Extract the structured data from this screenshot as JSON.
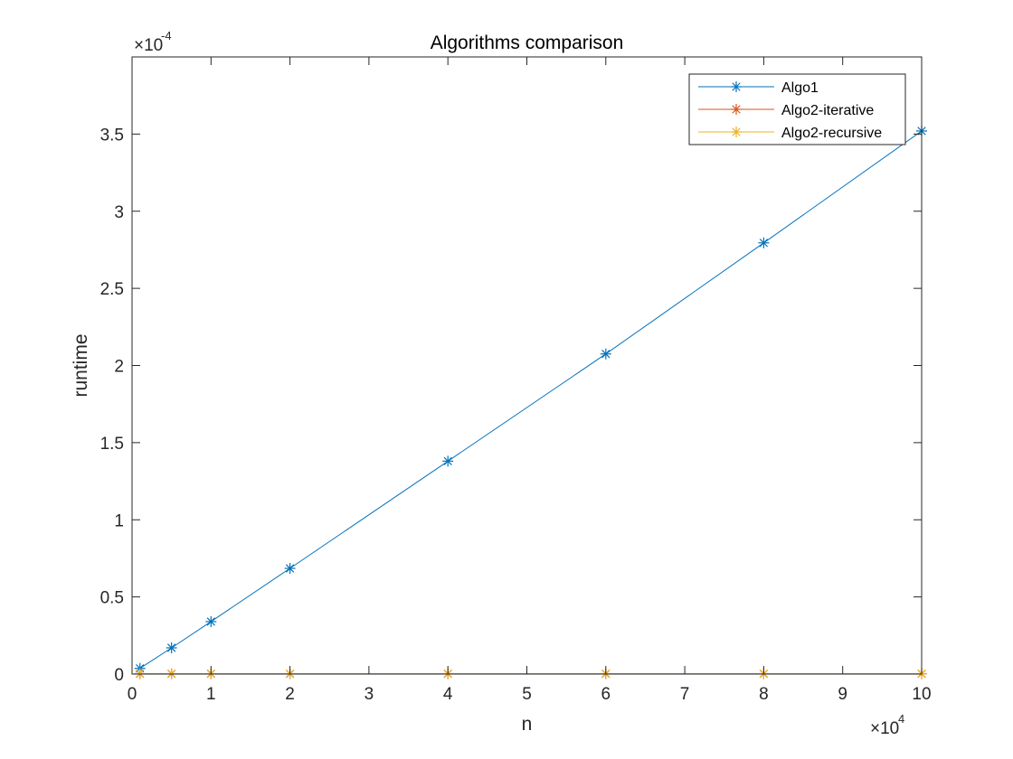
{
  "chart_data": {
    "type": "line",
    "title": "Algorithms comparison",
    "xlabel": "n",
    "ylabel": "runtime",
    "x_exponent": {
      "base": "×10",
      "power": "4"
    },
    "y_exponent": {
      "base": "×10",
      "power": "-4"
    },
    "xlim": [
      0,
      100000
    ],
    "ylim": [
      0,
      0.0004
    ],
    "x_ticks": [
      0,
      10000,
      20000,
      30000,
      40000,
      50000,
      60000,
      70000,
      80000,
      90000,
      100000
    ],
    "x_tick_labels": [
      "0",
      "1",
      "2",
      "3",
      "4",
      "5",
      "6",
      "7",
      "8",
      "9",
      "10"
    ],
    "y_ticks": [
      0,
      5e-05,
      0.0001,
      0.00015,
      0.0002,
      0.00025,
      0.0003,
      0.00035
    ],
    "y_tick_labels": [
      "0",
      "0.5",
      "1",
      "1.5",
      "2",
      "2.5",
      "3",
      "3.5"
    ],
    "grid": false,
    "legend_position": "top-right",
    "x": [
      1000,
      5000,
      10000,
      20000,
      40000,
      60000,
      80000,
      100000
    ],
    "series": [
      {
        "name": "Algo1",
        "color": "#0072BD",
        "marker": "asterisk",
        "values": [
          3.7e-06,
          1.7e-05,
          3.4e-05,
          6.85e-05,
          0.000138,
          0.0002075,
          0.0002795,
          0.000352
        ]
      },
      {
        "name": "Algo2-iterative",
        "color": "#D95319",
        "marker": "asterisk",
        "values": [
          2e-07,
          2e-07,
          2e-07,
          2e-07,
          2e-07,
          2e-07,
          2e-07,
          2e-07
        ]
      },
      {
        "name": "Algo2-recursive",
        "color": "#EDB120",
        "marker": "asterisk",
        "values": [
          3e-07,
          3e-07,
          3e-07,
          3e-07,
          3e-07,
          3e-07,
          3e-07,
          3e-07
        ]
      }
    ]
  }
}
